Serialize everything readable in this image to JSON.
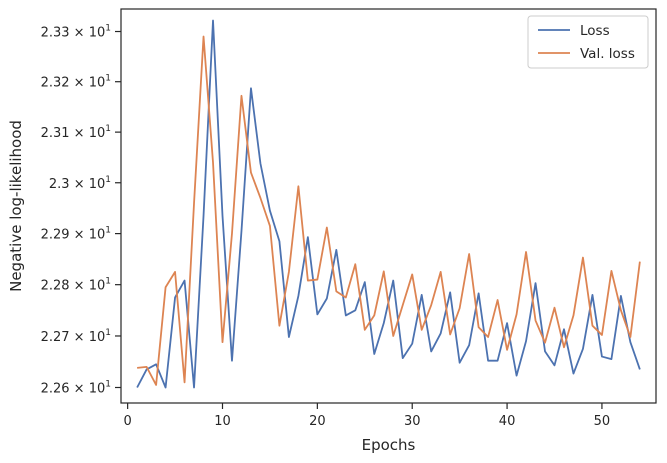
{
  "chart_data": {
    "type": "line",
    "xlabel": "Epochs",
    "ylabel": "Negative log-likelihood",
    "xlim": [
      -0.7,
      55.7
    ],
    "ylim": [
      22.57,
      23.345
    ],
    "yscale": "log",
    "xticks": [
      0,
      10,
      20,
      30,
      40,
      50
    ],
    "yticks": [
      {
        "value": 22.6,
        "label": "2.26 × 10",
        "exp": "1"
      },
      {
        "value": 22.7,
        "label": "2.27 × 10",
        "exp": "1"
      },
      {
        "value": 22.8,
        "label": "2.28 × 10",
        "exp": "1"
      },
      {
        "value": 22.9,
        "label": "2.29 × 10",
        "exp": "1"
      },
      {
        "value": 23.0,
        "label": "2.3 × 10",
        "exp": "1"
      },
      {
        "value": 23.1,
        "label": "2.31 × 10",
        "exp": "1"
      },
      {
        "value": 23.2,
        "label": "2.32 × 10",
        "exp": "1"
      },
      {
        "value": 23.3,
        "label": "2.33 × 10",
        "exp": "1"
      }
    ],
    "legend_position": "top-right",
    "grid": false,
    "x": [
      1,
      2,
      3,
      4,
      5,
      6,
      7,
      8,
      9,
      10,
      11,
      12,
      13,
      14,
      15,
      16,
      17,
      18,
      19,
      20,
      21,
      22,
      23,
      24,
      25,
      26,
      27,
      28,
      29,
      30,
      31,
      32,
      33,
      34,
      35,
      36,
      37,
      38,
      39,
      40,
      41,
      42,
      43,
      44,
      45,
      46,
      47,
      48,
      49,
      50,
      51,
      52,
      53,
      54
    ],
    "series": [
      {
        "name": "Loss",
        "color": "#4c72b0",
        "values": [
          22.6,
          22.635,
          22.645,
          22.6,
          22.775,
          22.808,
          22.6,
          22.935,
          23.322,
          22.935,
          22.652,
          22.905,
          23.187,
          23.038,
          22.945,
          22.885,
          22.698,
          22.778,
          22.893,
          22.742,
          22.773,
          22.868,
          22.74,
          22.75,
          22.805,
          22.665,
          22.725,
          22.808,
          22.657,
          22.685,
          22.78,
          22.67,
          22.705,
          22.785,
          22.648,
          22.682,
          22.783,
          22.652,
          22.652,
          22.725,
          22.623,
          22.69,
          22.803,
          22.67,
          22.643,
          22.713,
          22.627,
          22.675,
          22.78,
          22.66,
          22.655,
          22.778,
          22.688,
          22.635
        ]
      },
      {
        "name": "Val. loss",
        "color": "#dd8452",
        "values": [
          22.638,
          22.64,
          22.605,
          22.795,
          22.825,
          22.61,
          22.96,
          23.29,
          23.04,
          22.688,
          22.9,
          23.172,
          23.02,
          22.97,
          22.915,
          22.72,
          22.825,
          22.993,
          22.808,
          22.81,
          22.912,
          22.787,
          22.775,
          22.84,
          22.712,
          22.74,
          22.826,
          22.7,
          22.76,
          22.82,
          22.712,
          22.76,
          22.825,
          22.703,
          22.754,
          22.86,
          22.717,
          22.698,
          22.77,
          22.673,
          22.742,
          22.864,
          22.73,
          22.687,
          22.755,
          22.678,
          22.74,
          22.853,
          22.72,
          22.702,
          22.827,
          22.75,
          22.698,
          22.845
        ]
      }
    ]
  }
}
